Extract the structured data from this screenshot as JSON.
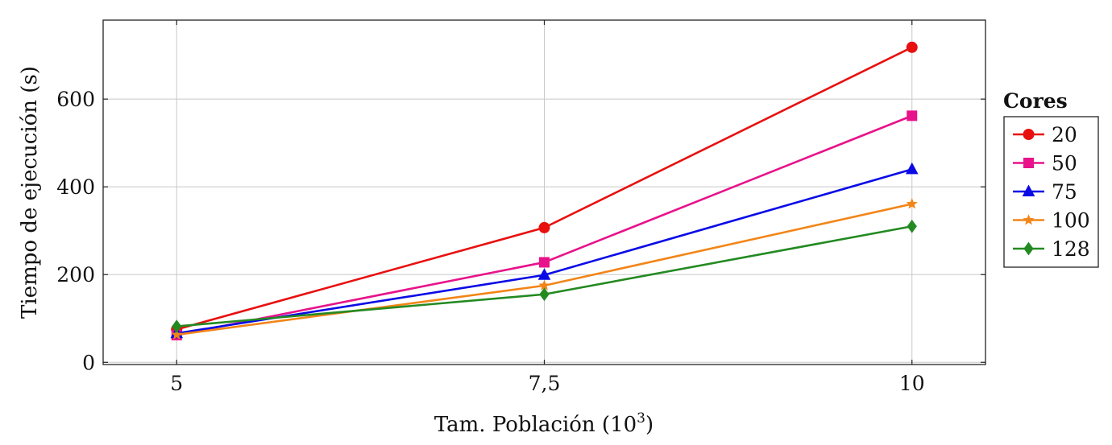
{
  "chart_data": {
    "type": "line",
    "title": "",
    "xlabel": "Tam. Población (10",
    "xlabel_sup": "3",
    "xlabel_suffix": ")",
    "ylabel": "Tiempo de ejecución (s)",
    "x": [
      5,
      7.5,
      10
    ],
    "x_tick_labels": [
      "5",
      "7,5",
      "10"
    ],
    "y_ticks": [
      0,
      200,
      400,
      600
    ],
    "y_tick_labels": [
      "0",
      "200",
      "400",
      "600"
    ],
    "xlim": [
      4.5,
      10.5
    ],
    "ylim": [
      -5,
      780
    ],
    "grid": true,
    "legend": {
      "title": "Cores",
      "placement": "outside-right"
    },
    "series": [
      {
        "name": "20",
        "color": "#e8100f",
        "marker": "circle",
        "values": [
          75,
          307,
          718
        ]
      },
      {
        "name": "50",
        "color": "#e8128a",
        "marker": "square",
        "values": [
          62,
          228,
          562
        ]
      },
      {
        "name": "75",
        "color": "#0a0ae6",
        "marker": "triangle",
        "values": [
          66,
          199,
          440
        ]
      },
      {
        "name": "100",
        "color": "#f28518",
        "marker": "star",
        "values": [
          63,
          175,
          361
        ]
      },
      {
        "name": "128",
        "color": "#238a22",
        "marker": "diamond",
        "values": [
          82,
          155,
          310
        ]
      }
    ]
  }
}
